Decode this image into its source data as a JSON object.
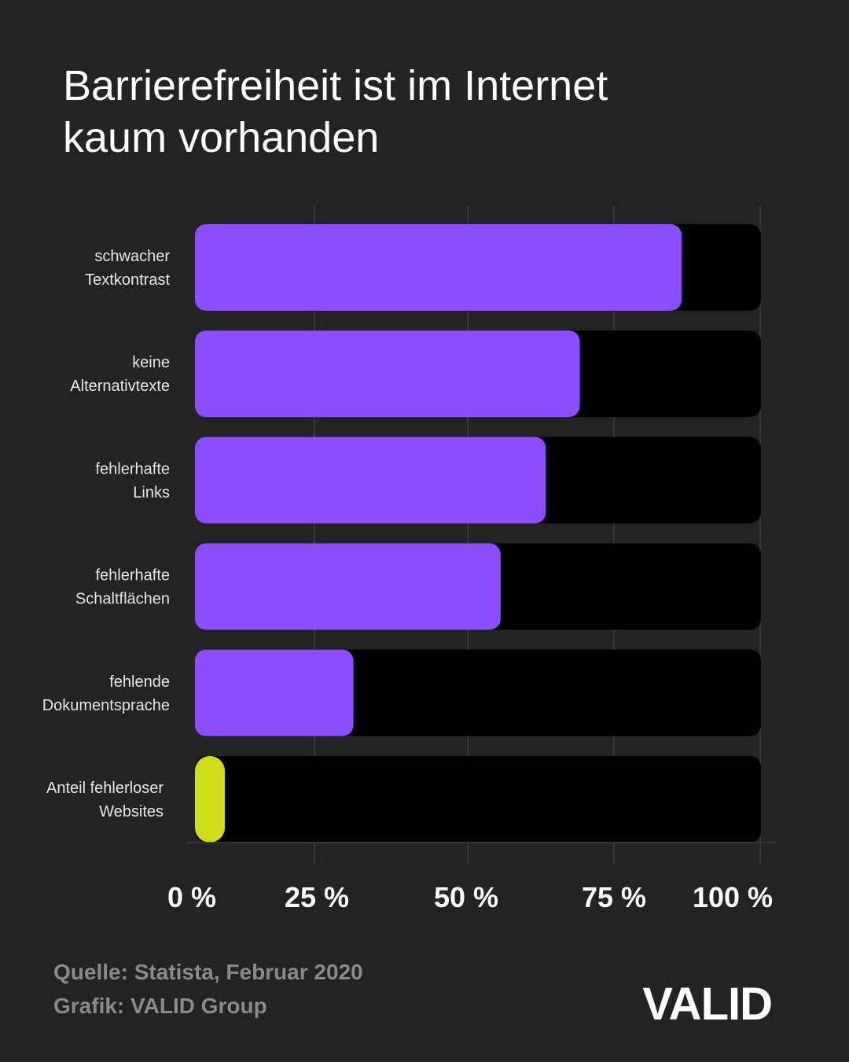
{
  "header": {
    "title_line1": "Barrierefreiheit ist im Internet",
    "title_line2": "kaum vorhanden"
  },
  "colors": {
    "background": "#232323",
    "bar_primary": "#8b4dff",
    "bar_highlight": "#cfe01a",
    "track": "#000000",
    "grid": "#3c3c3c",
    "footer_text": "#8a8a8a"
  },
  "chart_data": {
    "type": "bar",
    "orientation": "horizontal",
    "title": "Barrierefreiheit ist im Internet kaum vorhanden",
    "categories": [
      [
        "schwacher",
        "Textkontrast"
      ],
      [
        "keine",
        "Alternativtexte"
      ],
      [
        "fehlerhafte",
        "Links"
      ],
      [
        "fehlerhafte",
        "Schaltflächen"
      ],
      [
        "fehlende",
        "Dokumentsprache"
      ],
      [
        "Anteil fehlerloser",
        "Websites"
      ]
    ],
    "values": [
      86,
      68,
      62,
      54,
      28,
      2
    ],
    "highlight_index": 5,
    "xlim": [
      0,
      100
    ],
    "xticks": [
      0,
      25,
      50,
      75,
      100
    ],
    "xtick_labels": [
      "0 %",
      "25 %",
      "50 %",
      "75 %",
      "100 %"
    ],
    "xlabel": "",
    "ylabel": "",
    "grid": true,
    "legend": "none"
  },
  "footer": {
    "source": "Quelle: Statista, Februar 2020",
    "credit": "Grafik: VALID Group"
  },
  "logo": {
    "text": "VALID"
  }
}
